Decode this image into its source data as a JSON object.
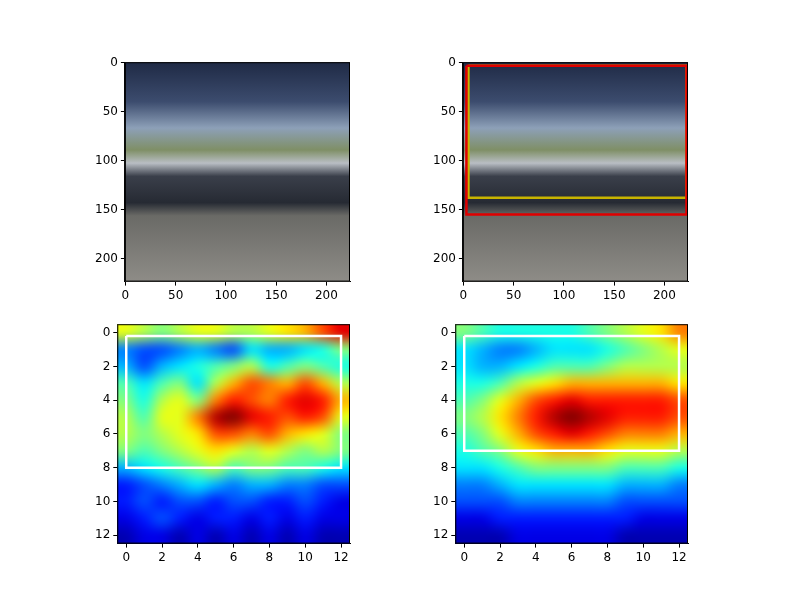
{
  "chart_data": [
    {
      "type": "image",
      "xlim": [
        -0.5,
        223.5
      ],
      "ylim": [
        223.5,
        -0.5
      ],
      "xticks": [
        0,
        50,
        100,
        150,
        200
      ],
      "yticks": [
        0,
        50,
        100,
        150,
        200
      ],
      "grid": false
    },
    {
      "type": "image",
      "xlim": [
        -0.5,
        223.5
      ],
      "ylim": [
        223.5,
        -0.5
      ],
      "xticks": [
        0,
        50,
        100,
        150,
        200
      ],
      "yticks": [
        0,
        50,
        100,
        150,
        200
      ],
      "grid": false,
      "boxes": [
        {
          "x": [
            3,
            222
          ],
          "y": [
            3,
            155
          ],
          "color": "#e00000"
        },
        {
          "x": [
            5,
            222
          ],
          "y": [
            3,
            138
          ],
          "color": "#c8b400"
        }
      ]
    },
    {
      "type": "heatmap",
      "xlim": [
        -0.5,
        12.5
      ],
      "ylim": [
        12.5,
        -0.5
      ],
      "xticks": [
        0,
        2,
        4,
        6,
        8,
        10,
        12
      ],
      "yticks": [
        0,
        2,
        4,
        6,
        8,
        10,
        12
      ],
      "grid": false,
      "color_range": [
        0,
        1
      ],
      "boxes": [
        {
          "x": [
            0,
            12
          ],
          "y": [
            0.2,
            8
          ],
          "color": "#ffffff"
        }
      ],
      "cells": [
        [
          0.6,
          0.55,
          0.5,
          0.55,
          0.6,
          0.6,
          0.55,
          0.55,
          0.6,
          0.65,
          0.7,
          0.8,
          0.9
        ],
        [
          0.25,
          0.2,
          0.2,
          0.25,
          0.3,
          0.25,
          0.2,
          0.35,
          0.3,
          0.3,
          0.35,
          0.4,
          0.5
        ],
        [
          0.3,
          0.2,
          0.3,
          0.35,
          0.4,
          0.45,
          0.5,
          0.55,
          0.4,
          0.45,
          0.5,
          0.45,
          0.4
        ],
        [
          0.45,
          0.35,
          0.45,
          0.5,
          0.35,
          0.55,
          0.7,
          0.8,
          0.75,
          0.7,
          0.8,
          0.7,
          0.55
        ],
        [
          0.5,
          0.4,
          0.55,
          0.6,
          0.5,
          0.75,
          0.85,
          0.8,
          0.75,
          0.85,
          0.9,
          0.85,
          0.7
        ],
        [
          0.55,
          0.45,
          0.6,
          0.6,
          0.75,
          0.95,
          1.0,
          0.9,
          0.85,
          0.8,
          0.85,
          0.8,
          0.6
        ],
        [
          0.55,
          0.5,
          0.55,
          0.6,
          0.65,
          0.8,
          0.8,
          0.75,
          0.8,
          0.7,
          0.65,
          0.6,
          0.5
        ],
        [
          0.5,
          0.45,
          0.5,
          0.55,
          0.6,
          0.65,
          0.6,
          0.55,
          0.6,
          0.55,
          0.5,
          0.55,
          0.5
        ],
        [
          0.3,
          0.35,
          0.4,
          0.45,
          0.5,
          0.55,
          0.45,
          0.5,
          0.5,
          0.45,
          0.45,
          0.4,
          0.35
        ],
        [
          0.15,
          0.2,
          0.25,
          0.3,
          0.35,
          0.3,
          0.25,
          0.3,
          0.3,
          0.25,
          0.25,
          0.2,
          0.2
        ],
        [
          0.15,
          0.2,
          0.15,
          0.2,
          0.2,
          0.15,
          0.2,
          0.2,
          0.15,
          0.15,
          0.2,
          0.15,
          0.1
        ],
        [
          0.1,
          0.15,
          0.2,
          0.15,
          0.1,
          0.15,
          0.15,
          0.1,
          0.15,
          0.1,
          0.15,
          0.1,
          0.1
        ],
        [
          0.05,
          0.1,
          0.1,
          0.05,
          0.1,
          0.05,
          0.1,
          0.05,
          0.1,
          0.05,
          0.1,
          0.05,
          0.05
        ]
      ]
    },
    {
      "type": "heatmap",
      "xlim": [
        -0.5,
        12.5
      ],
      "ylim": [
        12.5,
        -0.5
      ],
      "xticks": [
        0,
        2,
        4,
        6,
        8,
        10,
        12
      ],
      "yticks": [
        0,
        2,
        4,
        6,
        8,
        10,
        12
      ],
      "grid": false,
      "color_range": [
        0,
        1
      ],
      "boxes": [
        {
          "x": [
            0,
            12
          ],
          "y": [
            0.2,
            7
          ],
          "color": "#ffffff"
        }
      ],
      "cells": [
        [
          0.5,
          0.45,
          0.4,
          0.4,
          0.4,
          0.4,
          0.4,
          0.45,
          0.5,
          0.55,
          0.6,
          0.65,
          0.75
        ],
        [
          0.35,
          0.3,
          0.25,
          0.25,
          0.3,
          0.35,
          0.35,
          0.35,
          0.4,
          0.45,
          0.5,
          0.55,
          0.6
        ],
        [
          0.35,
          0.3,
          0.3,
          0.35,
          0.4,
          0.45,
          0.45,
          0.45,
          0.5,
          0.55,
          0.55,
          0.55,
          0.55
        ],
        [
          0.4,
          0.4,
          0.45,
          0.55,
          0.6,
          0.65,
          0.7,
          0.7,
          0.7,
          0.7,
          0.7,
          0.7,
          0.65
        ],
        [
          0.45,
          0.5,
          0.6,
          0.7,
          0.8,
          0.85,
          0.9,
          0.85,
          0.85,
          0.85,
          0.85,
          0.85,
          0.8
        ],
        [
          0.5,
          0.55,
          0.65,
          0.75,
          0.85,
          0.95,
          1.0,
          0.95,
          0.9,
          0.85,
          0.85,
          0.85,
          0.8
        ],
        [
          0.45,
          0.5,
          0.6,
          0.7,
          0.8,
          0.85,
          0.9,
          0.85,
          0.8,
          0.75,
          0.75,
          0.75,
          0.7
        ],
        [
          0.4,
          0.45,
          0.5,
          0.6,
          0.65,
          0.7,
          0.7,
          0.7,
          0.65,
          0.6,
          0.6,
          0.6,
          0.55
        ],
        [
          0.35,
          0.35,
          0.4,
          0.45,
          0.5,
          0.5,
          0.5,
          0.5,
          0.5,
          0.45,
          0.45,
          0.45,
          0.4
        ],
        [
          0.25,
          0.25,
          0.3,
          0.35,
          0.35,
          0.35,
          0.35,
          0.35,
          0.35,
          0.3,
          0.3,
          0.3,
          0.25
        ],
        [
          0.2,
          0.2,
          0.2,
          0.25,
          0.25,
          0.25,
          0.25,
          0.25,
          0.25,
          0.2,
          0.2,
          0.2,
          0.2
        ],
        [
          0.1,
          0.1,
          0.15,
          0.15,
          0.15,
          0.15,
          0.15,
          0.15,
          0.15,
          0.15,
          0.1,
          0.1,
          0.1
        ],
        [
          0.05,
          0.05,
          0.05,
          0.1,
          0.1,
          0.1,
          0.1,
          0.1,
          0.1,
          0.05,
          0.05,
          0.05,
          0.05
        ]
      ]
    }
  ]
}
